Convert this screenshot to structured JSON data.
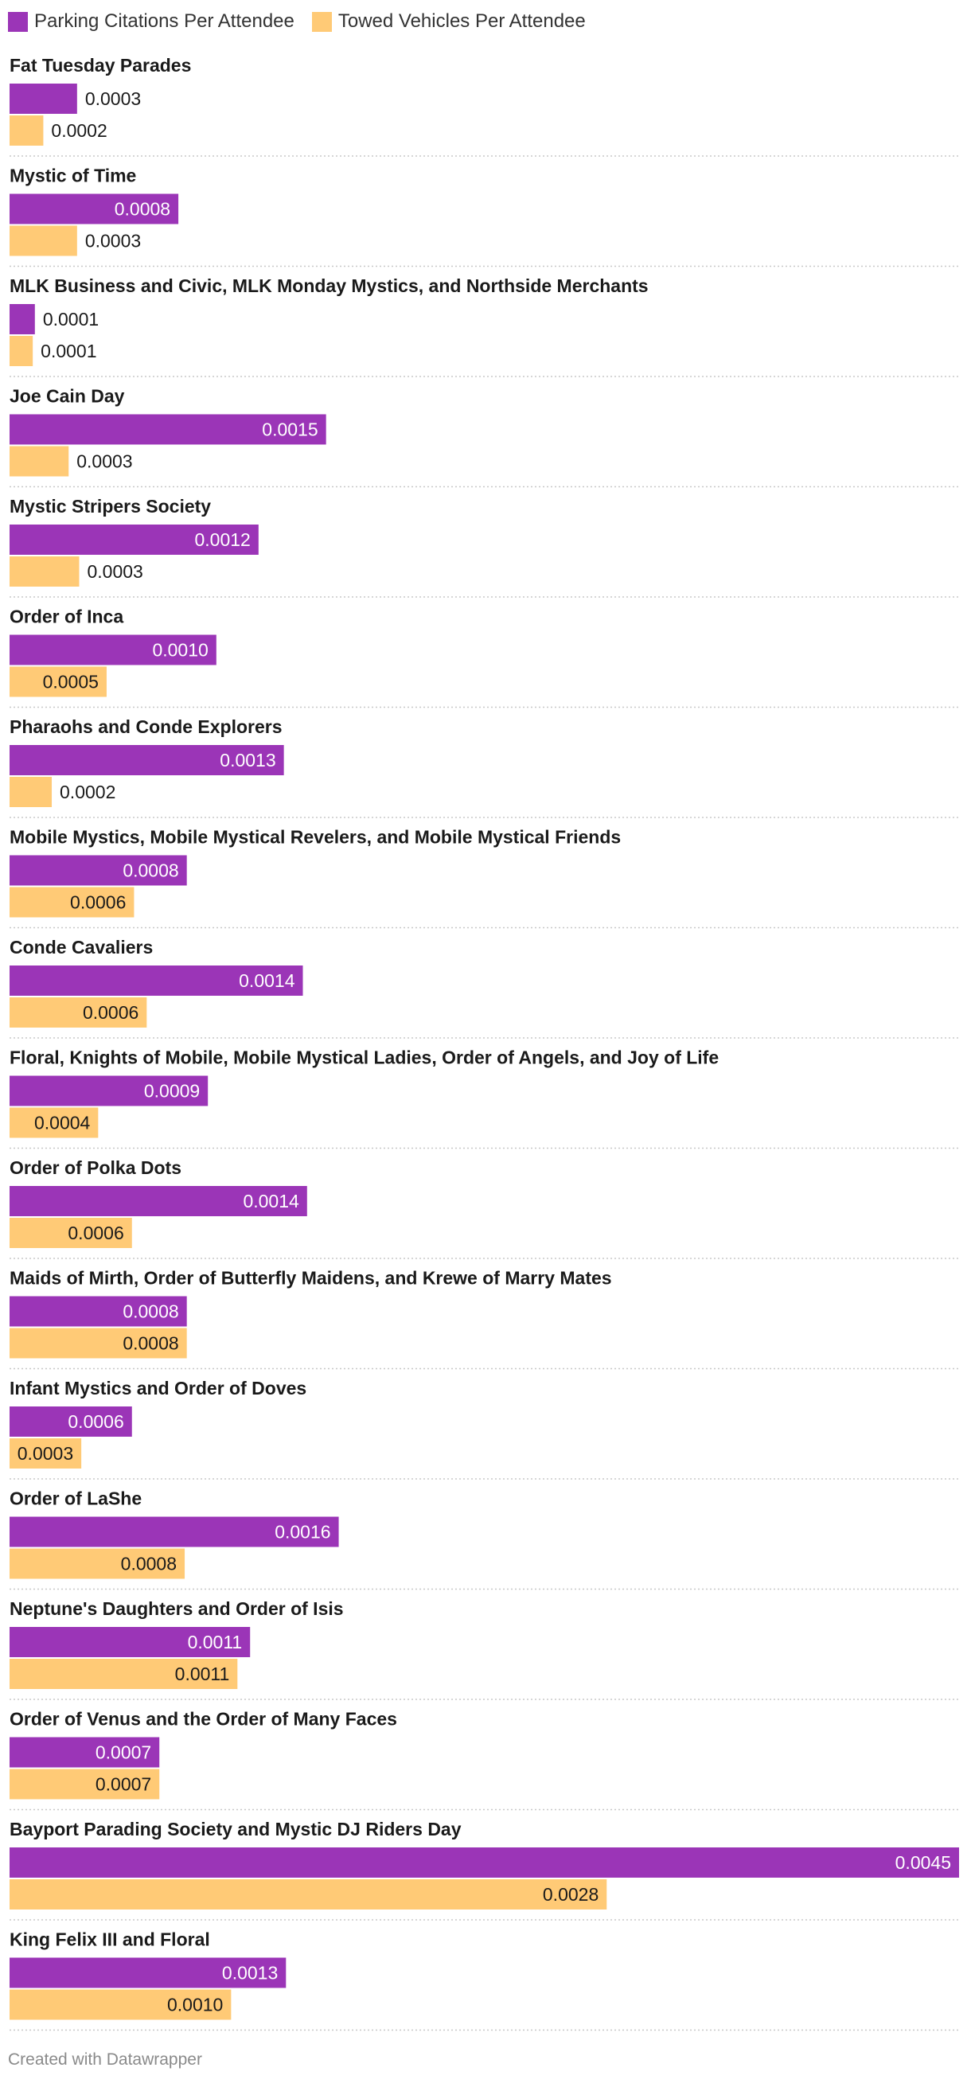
{
  "colors": {
    "citations": "#9b35b7",
    "towed": "#ffca76",
    "label_inside": "#ffffff",
    "label_outside": "#1a1a1a",
    "separator": "#c8c8c8"
  },
  "legend": {
    "citations_label": "Parking Citations Per Attendee",
    "towed_label": "Towed Vehicles Per Attendee"
  },
  "footer": {
    "credit": "Created with Datawrapper"
  },
  "chart_data": {
    "type": "bar",
    "orientation": "horizontal",
    "xlim": [
      0,
      0.0045
    ],
    "categories": [
      "Fat Tuesday Parades",
      "Mystic of Time",
      "MLK Business and Civic, MLK Monday Mystics, and Northside Merchants",
      "Joe Cain Day",
      "Mystic Stripers Society",
      "Order of Inca",
      "Pharaohs and Conde Explorers",
      "Mobile Mystics, Mobile Mystical Revelers, and Mobile Mystical Friends",
      "Conde Cavaliers",
      "Floral, Knights of Mobile, Mobile Mystical Ladies, Order of Angels, and Joy of Life",
      "Order of Polka Dots",
      "Maids of Mirth, Order of Butterfly Maidens, and Krewe of Marry Mates",
      "Infant Mystics and Order of Doves",
      "Order of LaShe",
      "Neptune's Daughters and Order of Isis",
      "Order of Venus and the Order of Many Faces",
      "Bayport Parading Society and Mystic DJ Riders Day",
      "King Felix III and Floral"
    ],
    "series": [
      {
        "name": "Parking Citations Per Attendee",
        "values": [
          0.00032,
          0.0008,
          0.00012,
          0.0015,
          0.00118,
          0.00098,
          0.0013,
          0.00084,
          0.00139,
          0.00094,
          0.00141,
          0.00084,
          0.00058,
          0.00156,
          0.00114,
          0.00071,
          0.0045,
          0.00131
        ],
        "labels": [
          "0.0003",
          "0.0008",
          "0.0001",
          "0.0015",
          "0.0012",
          "0.0010",
          "0.0013",
          "0.0008",
          "0.0014",
          "0.0009",
          "0.0014",
          "0.0008",
          "0.0006",
          "0.0016",
          "0.0011",
          "0.0007",
          "0.0045",
          "0.0013"
        ]
      },
      {
        "name": "Towed Vehicles Per Attendee",
        "values": [
          0.00016,
          0.00032,
          0.00011,
          0.00028,
          0.00033,
          0.00046,
          0.0002,
          0.00059,
          0.00065,
          0.00042,
          0.00058,
          0.00084,
          0.00034,
          0.00083,
          0.00108,
          0.00071,
          0.00283,
          0.00105
        ],
        "labels": [
          "0.0002",
          "0.0003",
          "0.0001",
          "0.0003",
          "0.0003",
          "0.0005",
          "0.0002",
          "0.0006",
          "0.0006",
          "0.0004",
          "0.0006",
          "0.0008",
          "0.0003",
          "0.0008",
          "0.0011",
          "0.0007",
          "0.0028",
          "0.0010"
        ]
      }
    ]
  }
}
